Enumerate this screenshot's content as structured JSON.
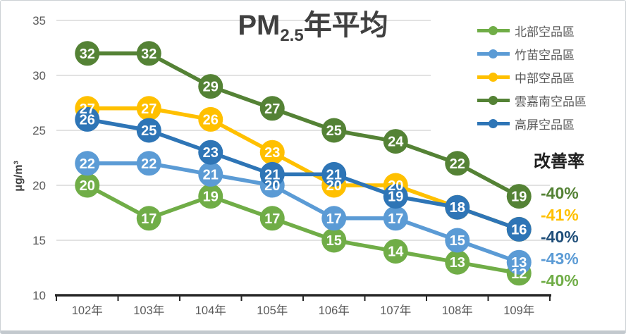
{
  "chart_data": {
    "type": "line",
    "title": "PM2.5年平均",
    "title_parts": {
      "prefix": "PM",
      "sub": "2.5",
      "suffix": "年平均"
    },
    "ylabel": "μg/m³",
    "ylim": [
      10,
      35
    ],
    "yticks": [
      10,
      15,
      20,
      25,
      30,
      35
    ],
    "grid": true,
    "legend_position": "right-top",
    "categories": [
      "102年",
      "103年",
      "104年",
      "105年",
      "106年",
      "107年",
      "108年",
      "109年"
    ],
    "series": [
      {
        "name": "北部空品區",
        "color": "#70AD47",
        "values": [
          20,
          17,
          19,
          17,
          15,
          14,
          13,
          12
        ],
        "improvement": "-40%"
      },
      {
        "name": "竹苗空品區",
        "color": "#5B9BD5",
        "values": [
          22,
          22,
          21,
          20,
          17,
          17,
          15,
          13
        ],
        "improvement": "-43%"
      },
      {
        "name": "中部空品區",
        "color": "#FFC000",
        "values": [
          27,
          27,
          26,
          23,
          20,
          20,
          18,
          16
        ],
        "improvement": "-41%"
      },
      {
        "name": "雲嘉南空品區",
        "color": "#548235",
        "values": [
          32,
          32,
          29,
          27,
          25,
          24,
          22,
          19
        ],
        "improvement": "-40%"
      },
      {
        "name": "高屏空品區",
        "color": "#2E75B6",
        "values": [
          26,
          25,
          23,
          21,
          21,
          19,
          18,
          16
        ],
        "improvement": "-40%"
      }
    ],
    "annotation": {
      "header": "改善率",
      "rates": [
        {
          "text": "-40%",
          "color": "#548235"
        },
        {
          "text": "-41%",
          "color": "#FFC000"
        },
        {
          "text": "-40%",
          "color": "#1F4E79"
        },
        {
          "text": "-43%",
          "color": "#5B9BD5"
        },
        {
          "text": "-40%",
          "color": "#70AD47"
        }
      ]
    },
    "style": {
      "grid_color": "#D9D9D9",
      "axis_color": "#262626",
      "tick_label_color": "#595959",
      "title_color": "#404040",
      "data_label_color": "#FFFFFF"
    }
  }
}
